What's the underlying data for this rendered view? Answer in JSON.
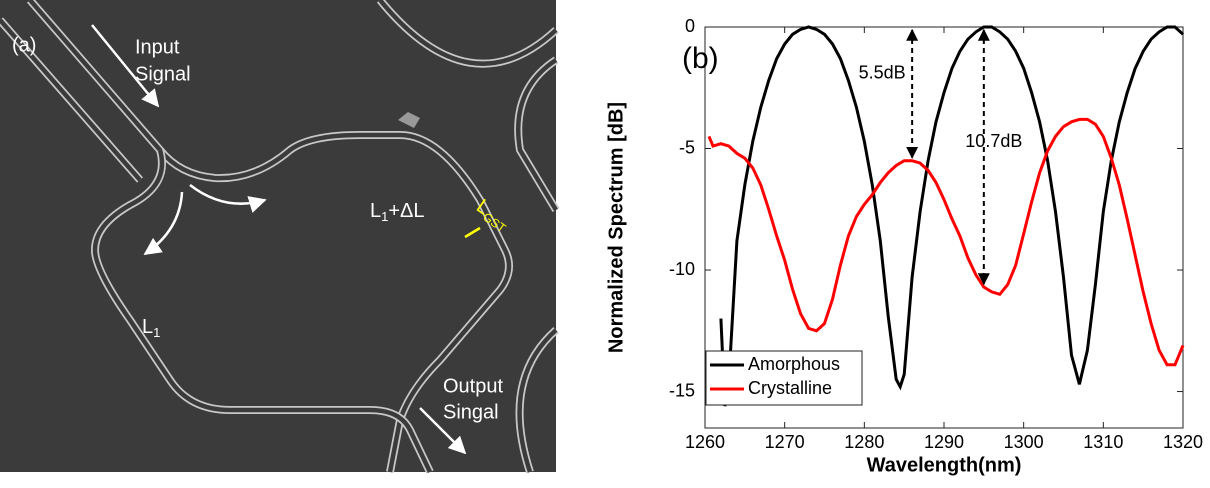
{
  "image_panel": {
    "label": "(a)",
    "input": [
      "Input",
      "Signal"
    ],
    "output": [
      "Output",
      "Singal"
    ],
    "arm_long": {
      "base": "L",
      "sub": "1",
      "suffix": "+ΔL"
    },
    "arm_short": {
      "base": "L",
      "sub": "1"
    },
    "gst": {
      "base": "L",
      "sub": "GST"
    }
  },
  "chart_data": {
    "type": "line",
    "panel_label": "(b)",
    "x_label": "Wavelength(nm)",
    "y_label": "Normalized Spectrum [dB]",
    "xlim": [
      1260,
      1320
    ],
    "xticks": [
      1260,
      1270,
      1280,
      1290,
      1300,
      1310,
      1320
    ],
    "ylim": [
      -16.5,
      0
    ],
    "yticks": [
      -15,
      -10,
      -5,
      0
    ],
    "grid": false,
    "legend": "lower left",
    "series": [
      {
        "name": "Amorphous",
        "color": "#000000",
        "x": [
          1262,
          1262.5,
          1263,
          1264,
          1265,
          1266,
          1267,
          1268,
          1269,
          1270,
          1271,
          1272,
          1273,
          1274,
          1275,
          1276,
          1277,
          1278,
          1279,
          1280,
          1281,
          1282,
          1283,
          1284,
          1284.5,
          1285,
          1286,
          1287,
          1288,
          1289,
          1290,
          1291,
          1292,
          1293,
          1294,
          1295,
          1295.5,
          1296,
          1297,
          1298,
          1299,
          1300,
          1301,
          1302,
          1303,
          1304,
          1305,
          1306,
          1307,
          1308,
          1309,
          1310,
          1311,
          1312,
          1313,
          1314,
          1315,
          1316,
          1317,
          1318,
          1318.5,
          1319,
          1320
        ],
        "values": [
          -12,
          -15.6,
          -14.5,
          -8.8,
          -6.5,
          -4.7,
          -3.3,
          -2.2,
          -1.3,
          -0.7,
          -0.3,
          -0.1,
          0,
          -0.1,
          -0.3,
          -0.7,
          -1.3,
          -2.2,
          -3.3,
          -4.7,
          -6.5,
          -8.8,
          -11.9,
          -14.5,
          -14.8,
          -14.3,
          -10.3,
          -7.6,
          -5.5,
          -3.9,
          -2.7,
          -1.7,
          -1,
          -0.5,
          -0.2,
          0,
          0,
          0,
          -0.2,
          -0.5,
          -1,
          -1.7,
          -2.7,
          -3.9,
          -5.5,
          -7.6,
          -10.3,
          -13.5,
          -14.7,
          -13.3,
          -10.6,
          -7.6,
          -5.5,
          -3.9,
          -2.7,
          -1.7,
          -1,
          -0.5,
          -0.2,
          0,
          0,
          0,
          -0.3
        ]
      },
      {
        "name": "Crystalline",
        "color": "#ff0000",
        "x": [
          1260.5,
          1261,
          1262,
          1263,
          1264,
          1265,
          1266,
          1267,
          1268,
          1269,
          1270,
          1271,
          1272,
          1273,
          1274,
          1275,
          1276,
          1277,
          1278,
          1279,
          1280,
          1281,
          1282,
          1283,
          1284,
          1285,
          1286,
          1287,
          1288,
          1289,
          1290,
          1291,
          1292,
          1293,
          1294,
          1295,
          1296,
          1297,
          1298,
          1299,
          1300,
          1301,
          1302,
          1303,
          1304,
          1305,
          1306,
          1307,
          1308,
          1309,
          1310,
          1311,
          1312,
          1313,
          1314,
          1315,
          1316,
          1317,
          1318,
          1319,
          1320
        ],
        "values": [
          -4.5,
          -4.9,
          -4.8,
          -4.9,
          -5.2,
          -5.4,
          -5.8,
          -6.5,
          -7.5,
          -8.6,
          -9.6,
          -10.8,
          -11.8,
          -12.4,
          -12.5,
          -12.2,
          -11.2,
          -9.8,
          -8.6,
          -7.8,
          -7.3,
          -6.9,
          -6.4,
          -6,
          -5.7,
          -5.5,
          -5.5,
          -5.6,
          -5.9,
          -6.4,
          -7.1,
          -7.9,
          -8.6,
          -9.5,
          -10.2,
          -10.7,
          -10.9,
          -11,
          -10.6,
          -9.8,
          -8.5,
          -7.2,
          -6,
          -5.1,
          -4.5,
          -4.1,
          -3.9,
          -3.8,
          -3.8,
          -4,
          -4.5,
          -5.4,
          -6.5,
          -7.9,
          -9.4,
          -10.9,
          -12.2,
          -13.3,
          -13.9,
          -13.9,
          -13.1
        ]
      }
    ],
    "annotations": [
      {
        "label": "5.5dB",
        "x": 1286,
        "from": 0,
        "to": -5.5
      },
      {
        "label": "10.7dB",
        "x": 1295,
        "from": 0,
        "to": -10.7
      }
    ]
  }
}
